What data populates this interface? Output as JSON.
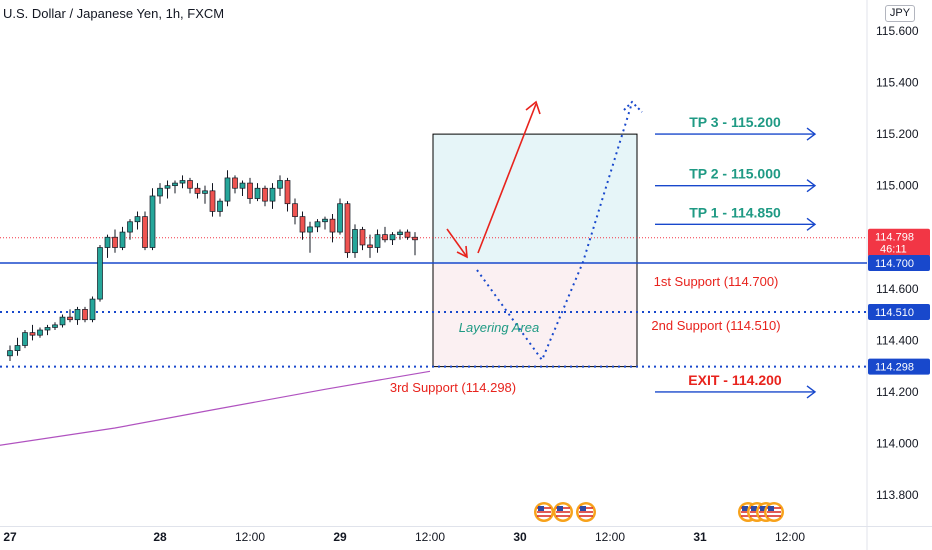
{
  "header": {
    "title": "U.S. Dollar / Japanese Yen, 1h, FXCM",
    "currency_button": "JPY"
  },
  "chart_data": {
    "type": "candlestick",
    "symbol": "USDJPY",
    "timeframe": "1h",
    "ylim": [
      113.7,
      115.68
    ],
    "y_ticks": [
      "115.600",
      "115.400",
      "115.200",
      "115.000",
      "114.800",
      "114.600",
      "114.400",
      "114.200",
      "114.000",
      "113.800"
    ],
    "x_ticks": [
      {
        "label": "27",
        "bar": 0
      },
      {
        "label": "28",
        "bar": 20
      },
      {
        "label": "12:00",
        "bar": 32
      },
      {
        "label": "29",
        "bar": 44
      },
      {
        "label": "12:00",
        "bar": 56
      },
      {
        "label": "30",
        "bar": 68
      },
      {
        "label": "12:00",
        "bar": 80
      },
      {
        "label": "31",
        "bar": 92
      },
      {
        "label": "12:00",
        "bar": 104
      }
    ],
    "candles": [
      [
        114.34,
        114.38,
        114.32,
        114.36
      ],
      [
        114.36,
        114.41,
        114.34,
        114.38
      ],
      [
        114.38,
        114.44,
        114.37,
        114.43
      ],
      [
        114.43,
        114.46,
        114.4,
        114.42
      ],
      [
        114.42,
        114.45,
        114.41,
        114.44
      ],
      [
        114.44,
        114.46,
        114.42,
        114.45
      ],
      [
        114.45,
        114.47,
        114.44,
        114.46
      ],
      [
        114.46,
        114.5,
        114.45,
        114.49
      ],
      [
        114.49,
        114.52,
        114.47,
        114.48
      ],
      [
        114.48,
        114.53,
        114.46,
        114.52
      ],
      [
        114.52,
        114.53,
        114.47,
        114.48
      ],
      [
        114.48,
        114.57,
        114.47,
        114.56
      ],
      [
        114.56,
        114.77,
        114.55,
        114.76
      ],
      [
        114.76,
        114.81,
        114.72,
        114.8
      ],
      [
        114.8,
        114.83,
        114.74,
        114.76
      ],
      [
        114.76,
        114.84,
        114.75,
        114.82
      ],
      [
        114.82,
        114.87,
        114.79,
        114.86
      ],
      [
        114.86,
        114.9,
        114.83,
        114.88
      ],
      [
        114.88,
        114.9,
        114.75,
        114.76
      ],
      [
        114.76,
        114.99,
        114.75,
        114.96
      ],
      [
        114.96,
        115.01,
        114.93,
        114.99
      ],
      [
        114.99,
        115.02,
        114.95,
        115.0
      ],
      [
        115.0,
        115.02,
        114.97,
        115.01
      ],
      [
        115.01,
        115.04,
        114.99,
        115.02
      ],
      [
        115.02,
        115.03,
        114.97,
        114.99
      ],
      [
        114.99,
        115.01,
        114.95,
        114.97
      ],
      [
        114.97,
        115.0,
        114.93,
        114.98
      ],
      [
        114.98,
        115.01,
        114.88,
        114.9
      ],
      [
        114.9,
        114.95,
        114.88,
        114.94
      ],
      [
        114.94,
        115.06,
        114.92,
        115.03
      ],
      [
        115.03,
        115.04,
        114.97,
        114.99
      ],
      [
        114.99,
        115.02,
        114.96,
        115.01
      ],
      [
        115.01,
        115.03,
        114.93,
        114.95
      ],
      [
        114.95,
        115.01,
        114.94,
        114.99
      ],
      [
        114.99,
        115.0,
        114.92,
        114.94
      ],
      [
        114.94,
        115.01,
        114.91,
        114.99
      ],
      [
        114.99,
        115.04,
        114.96,
        115.02
      ],
      [
        115.02,
        115.03,
        114.9,
        114.93
      ],
      [
        114.93,
        114.95,
        114.85,
        114.88
      ],
      [
        114.88,
        114.9,
        114.79,
        114.82
      ],
      [
        114.82,
        114.86,
        114.74,
        114.84
      ],
      [
        114.84,
        114.87,
        114.82,
        114.86
      ],
      [
        114.86,
        114.88,
        114.83,
        114.87
      ],
      [
        114.87,
        114.89,
        114.78,
        114.82
      ],
      [
        114.82,
        114.95,
        114.81,
        114.93
      ],
      [
        114.93,
        114.94,
        114.72,
        114.74
      ],
      [
        114.74,
        114.85,
        114.72,
        114.83
      ],
      [
        114.83,
        114.84,
        114.75,
        114.77
      ],
      [
        114.77,
        114.81,
        114.72,
        114.76
      ],
      [
        114.76,
        114.83,
        114.74,
        114.81
      ],
      [
        114.81,
        114.84,
        114.78,
        114.79
      ],
      [
        114.79,
        114.82,
        114.77,
        114.81
      ],
      [
        114.81,
        114.83,
        114.79,
        114.82
      ],
      [
        114.82,
        114.83,
        114.79,
        114.8
      ],
      [
        114.8,
        114.82,
        114.73,
        114.79
      ]
    ],
    "moving_average": [
      [
        -2,
        113.99
      ],
      [
        14,
        114.06
      ],
      [
        27,
        114.13
      ],
      [
        42,
        114.21
      ],
      [
        56,
        114.28
      ]
    ],
    "price_levels": [
      {
        "name": "current",
        "value": "114.798",
        "countdown": "46:11",
        "style": "dotted",
        "color": "#f23645"
      },
      {
        "name": "support-1",
        "value": "114.700",
        "style": "solid",
        "color": "#1848cc"
      },
      {
        "name": "support-2",
        "value": "114.510",
        "style": "dotted",
        "color": "#1848cc"
      },
      {
        "name": "support-3",
        "value": "114.298",
        "style": "dotted",
        "color": "#1848cc"
      }
    ],
    "annotations": {
      "tp3": "TP 3 - 115.200",
      "tp2": "TP 2 - 115.000",
      "tp1": "TP 1 - 114.850",
      "exit": "EXIT - 114.200",
      "support1": "1st Support (114.700)",
      "support2": "2nd Support (114.510)",
      "support3": "3rd Support (114.298)",
      "layering": "Layering Area"
    },
    "colors": {
      "up": "#26a69a",
      "down": "#ef5350",
      "tp_text": "#1f9a84",
      "exit_text": "#e8231d",
      "arrow_blue": "#1848cc",
      "support_text": "#e8231d",
      "ma": "#9c27b0",
      "profit_zone": "#e6f5f8",
      "loss_zone": "#fbf0f2"
    }
  }
}
